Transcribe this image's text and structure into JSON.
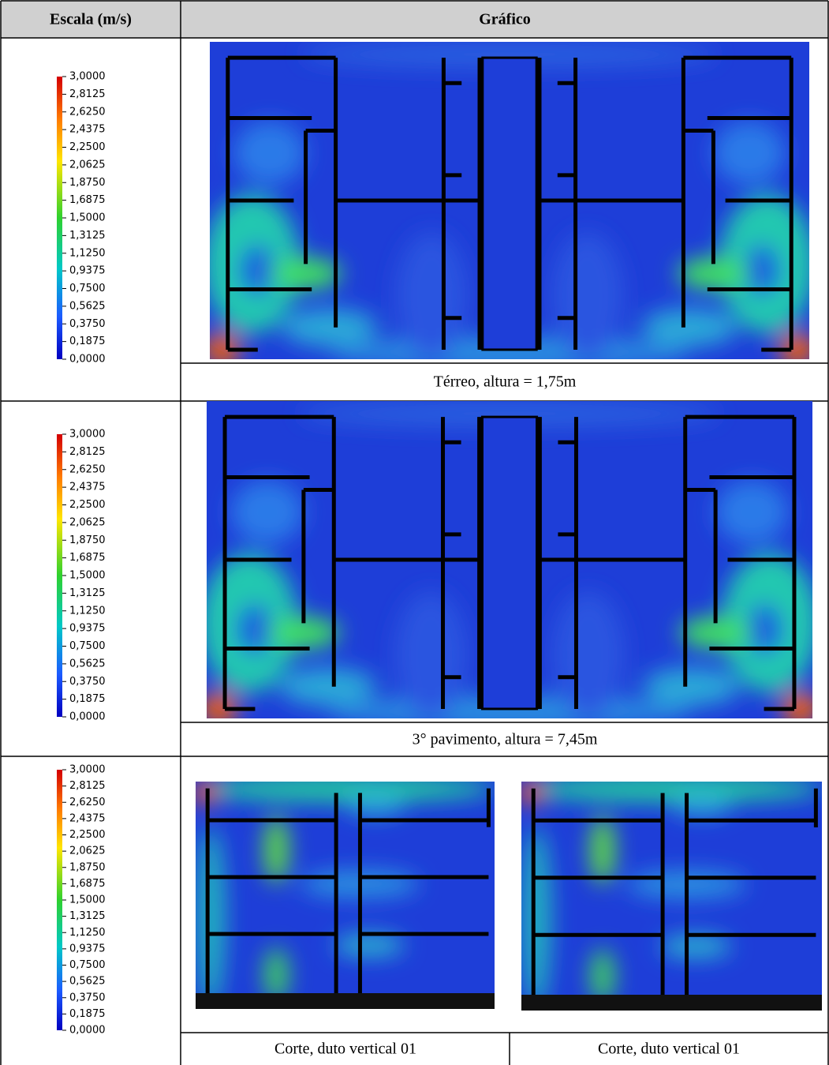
{
  "header": {
    "scale": "Escala (m/s)",
    "graphic": "Gráfico"
  },
  "rows": [
    {
      "scale": [
        "3,0000",
        "2,8125",
        "2,6250",
        "2,4375",
        "2,2500",
        "2,0625",
        "1,8750",
        "1,6875",
        "1,5000",
        "1,3125",
        "1,1250",
        "0,9375",
        "0,7500",
        "0,5625",
        "0,3750",
        "0,1875",
        "0,0000"
      ],
      "captions": [
        "Térreo, altura = 1,75m"
      ]
    },
    {
      "scale": [
        "3,0000",
        "2,8125",
        "2,6250",
        "2,4375",
        "2,2500",
        "2,0625",
        "1,8750",
        "1,6875",
        "1,5000",
        "1,3125",
        "1,1250",
        "0,9375",
        "0,7500",
        "0,5625",
        "0,3750",
        "0,1875",
        "0,0000"
      ],
      "captions": [
        "3° pavimento, altura = 7,45m"
      ]
    },
    {
      "scale": [
        "3,0000",
        "2,8125",
        "2,6250",
        "2,4375",
        "2,2500",
        "2,0625",
        "1,8750",
        "1,6875",
        "1,5000",
        "1,3125",
        "1,1250",
        "0,9375",
        "0,7500",
        "0,5625",
        "0,3750",
        "0,1875",
        "0,0000"
      ],
      "captions": [
        "Corte, duto vertical 01",
        "Corte, duto vertical 01"
      ]
    }
  ]
}
